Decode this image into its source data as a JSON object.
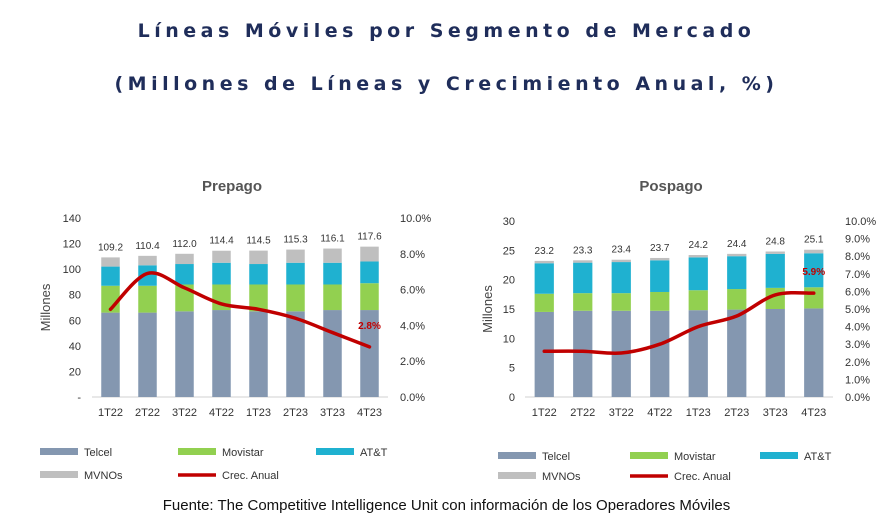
{
  "header": {
    "title": "Líneas Móviles por Segmento de Mercado",
    "subtitle": "(Millones de Líneas y Crecimiento Anual, %)"
  },
  "source": "Fuente: The Competitive Intelligence Unit con información de los Operadores Móviles",
  "colors": {
    "Telcel": "#8497b0",
    "Movistar": "#92d050",
    "AT&T": "#1fb1d0",
    "MVNOs": "#bfbfbf",
    "Crec. Anual": "#c00000"
  },
  "chart_data": [
    {
      "type": "bar",
      "stacked": true,
      "title": "Prepago",
      "ylabel": "Millones",
      "categories": [
        "1T22",
        "2T22",
        "3T22",
        "4T22",
        "1T23",
        "2T23",
        "3T23",
        "4T23"
      ],
      "ylim": [
        0,
        140
      ],
      "yticks": [
        "-",
        "20",
        "40",
        "60",
        "80",
        "100",
        "120",
        "140"
      ],
      "y2lim": [
        0,
        10
      ],
      "y2ticks": [
        "0.0%",
        "2.0%",
        "4.0%",
        "6.0%",
        "8.0%",
        "10.0%"
      ],
      "series": [
        {
          "name": "Telcel",
          "values": [
            66,
            66,
            67,
            68,
            67,
            67,
            68,
            68
          ]
        },
        {
          "name": "Movistar",
          "values": [
            21,
            21,
            21,
            20,
            21,
            21,
            20,
            21
          ]
        },
        {
          "name": "AT&T",
          "values": [
            15,
            16,
            16,
            17,
            16,
            17,
            17,
            17
          ]
        },
        {
          "name": "MVNOs",
          "values": [
            7.2,
            7.4,
            8.0,
            9.4,
            10.5,
            10.3,
            11.1,
            11.6
          ]
        }
      ],
      "totals": [
        "109.2",
        "110.4",
        "112.0",
        "114.4",
        "114.5",
        "115.3",
        "116.1",
        "117.6"
      ],
      "line": {
        "name": "Crec. Anual",
        "values": [
          4.9,
          6.9,
          6.1,
          5.2,
          4.9,
          4.4,
          3.6,
          2.8
        ]
      },
      "line_label": "2.8%",
      "legend": [
        "Telcel",
        "Movistar",
        "AT&T",
        "MVNOs",
        "Crec. Anual"
      ]
    },
    {
      "type": "bar",
      "stacked": true,
      "title": "Pospago",
      "ylabel": "Millones",
      "categories": [
        "1T22",
        "2T22",
        "3T22",
        "4T22",
        "1T23",
        "2T23",
        "3T23",
        "4T23"
      ],
      "ylim": [
        0,
        30
      ],
      "yticks": [
        "0",
        "5",
        "10",
        "15",
        "20",
        "25",
        "30"
      ],
      "y2lim": [
        0,
        10
      ],
      "y2ticks": [
        "0.0%",
        "1.0%",
        "2.0%",
        "3.0%",
        "4.0%",
        "5.0%",
        "6.0%",
        "7.0%",
        "8.0%",
        "9.0%",
        "10.0%"
      ],
      "series": [
        {
          "name": "Telcel",
          "values": [
            14.5,
            14.7,
            14.7,
            14.7,
            14.8,
            14.9,
            15.0,
            15.1
          ]
        },
        {
          "name": "Movistar",
          "values": [
            3.1,
            3.0,
            3.0,
            3.2,
            3.4,
            3.5,
            3.6,
            3.6
          ]
        },
        {
          "name": "AT&T",
          "values": [
            5.2,
            5.2,
            5.3,
            5.4,
            5.6,
            5.6,
            5.8,
            5.8
          ]
        },
        {
          "name": "MVNOs",
          "values": [
            0.4,
            0.4,
            0.4,
            0.4,
            0.4,
            0.4,
            0.4,
            0.6
          ]
        }
      ],
      "totals": [
        "23.2",
        "23.3",
        "23.4",
        "23.7",
        "24.2",
        "24.4",
        "24.8",
        "25.1"
      ],
      "line": {
        "name": "Crec. Anual",
        "values": [
          2.6,
          2.6,
          2.5,
          3.0,
          4.0,
          4.6,
          5.8,
          5.9
        ]
      },
      "line_label": "5.9%",
      "legend": [
        "Telcel",
        "Movistar",
        "AT&T",
        "MVNOs",
        "Crec. Anual"
      ]
    }
  ]
}
